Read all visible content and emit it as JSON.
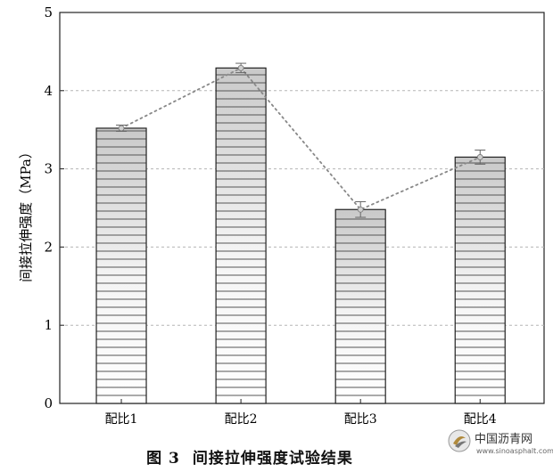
{
  "chart_data": {
    "type": "bar",
    "categories": [
      "配比1",
      "配比2",
      "配比3",
      "配比4"
    ],
    "values": [
      3.52,
      4.29,
      2.48,
      3.15
    ],
    "error": [
      0.04,
      0.06,
      0.1,
      0.09
    ],
    "overlay": "dotted-line-through-means",
    "ylabel": "间接拉伸强度（MPa）",
    "ylim": [
      0,
      5
    ],
    "yticks": [
      0,
      1,
      2,
      3,
      4,
      5
    ],
    "grid": "horizontal-dashed",
    "bar_pattern": "horizontal-stripes",
    "colors": {
      "bar_stroke": "#222222",
      "stripe": "#555555",
      "line": "#888888"
    }
  },
  "caption": {
    "figure_no": "图 3",
    "text": "间接拉伸强度试验结果"
  },
  "watermark": {
    "name": "中国沥青网",
    "url": "www.sinoasphalt.com"
  }
}
